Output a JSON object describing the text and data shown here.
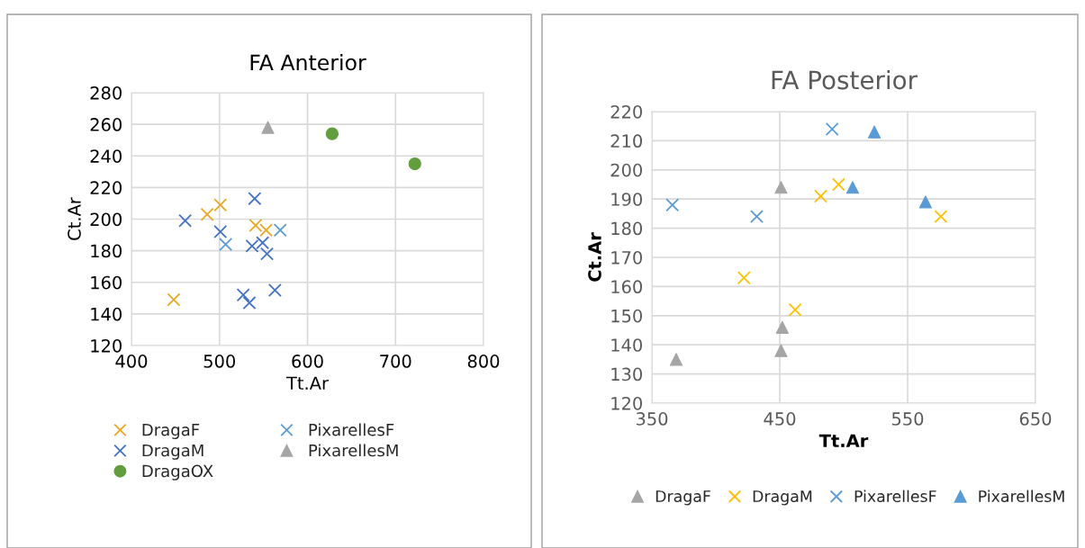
{
  "chart_data": [
    {
      "type": "scatter",
      "title": "FA Anterior",
      "xlabel": "Tt.Ar",
      "ylabel": "Ct.Ar",
      "xlim": [
        400,
        800
      ],
      "xticks": [
        400,
        500,
        600,
        700,
        800
      ],
      "ylim": [
        120,
        280
      ],
      "yticks": [
        120,
        140,
        160,
        180,
        200,
        220,
        240,
        260,
        280
      ],
      "grid": true,
      "legend": "bottom",
      "series": [
        {
          "name": "DragaF",
          "color": "#e8a825",
          "marker": "cross",
          "x": [
            448,
            486,
            501,
            541,
            553
          ],
          "values": [
            149,
            203,
            209,
            196,
            193
          ]
        },
        {
          "name": "DragaM",
          "color": "#4472c4",
          "marker": "cross",
          "x": [
            461,
            540,
            501,
            537,
            549,
            554,
            527,
            534,
            563
          ],
          "values": [
            199,
            213,
            192,
            183,
            185,
            178,
            152,
            147,
            155
          ]
        },
        {
          "name": "DragaOX",
          "color": "#629d3e",
          "marker": "circle",
          "x": [
            628,
            722
          ],
          "values": [
            254,
            235
          ]
        },
        {
          "name": "PixarellesF",
          "color": "#5b9bd5",
          "marker": "cross",
          "x": [
            507,
            569
          ],
          "values": [
            184,
            193
          ]
        },
        {
          "name": "PixarellesM",
          "color": "#a5a5a5",
          "marker": "triangle",
          "x": [
            555
          ],
          "values": [
            258
          ]
        }
      ]
    },
    {
      "type": "scatter",
      "title": "FA Posterior",
      "xlabel": "Tt.Ar",
      "ylabel": "Ct.Ar",
      "xlim": [
        350,
        650
      ],
      "xticks": [
        350,
        450,
        550,
        650
      ],
      "ylim": [
        120,
        220
      ],
      "yticks": [
        120,
        130,
        140,
        150,
        160,
        170,
        180,
        190,
        200,
        210,
        220
      ],
      "grid": true,
      "legend": "bottom",
      "series": [
        {
          "name": "DragaF",
          "color": "#a5a5a5",
          "marker": "triangle",
          "x": [
            451,
            452,
            451,
            369
          ],
          "values": [
            194,
            146,
            138,
            135
          ]
        },
        {
          "name": "DragaM",
          "color": "#ffc000",
          "marker": "cross",
          "x": [
            422,
            462,
            482,
            496,
            576
          ],
          "values": [
            163,
            152,
            191,
            195,
            184
          ]
        },
        {
          "name": "PixarellesF",
          "color": "#5b9bd5",
          "marker": "cross",
          "x": [
            366,
            432,
            491
          ],
          "values": [
            188,
            184,
            214
          ]
        },
        {
          "name": "PixarellesM",
          "color": "#5b9bd5",
          "marker": "triangle",
          "x": [
            524,
            507,
            564
          ],
          "values": [
            213,
            194,
            189
          ]
        }
      ]
    }
  ]
}
